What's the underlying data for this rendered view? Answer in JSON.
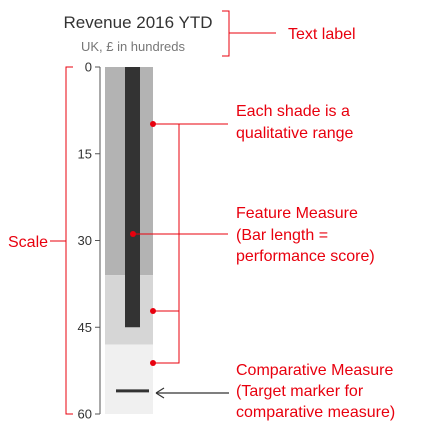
{
  "chart_data": {
    "type": "bullet",
    "title": "Revenue 2016 YTD",
    "subtitle": "UK, £ in hundreds",
    "scale": {
      "min": 0,
      "max": 60,
      "ticks": [
        0,
        15,
        30,
        45,
        60
      ],
      "direction": "top-to-bottom"
    },
    "ranges": [
      {
        "from": 0,
        "to": 36,
        "color": "#b3b3b3"
      },
      {
        "from": 36,
        "to": 48,
        "color": "#d6d6d6"
      },
      {
        "from": 48,
        "to": 60,
        "color": "#f0f0f0"
      }
    ],
    "feature_measure": {
      "value": 45,
      "color": "#333333"
    },
    "comparative_measure": {
      "value": 56,
      "color": "#333333"
    }
  },
  "annotations": {
    "text_label": "Text label",
    "scale": "Scale",
    "ranges": [
      "Each shade is a",
      "qualitative range"
    ],
    "feature": [
      "Feature Measure",
      "(Bar length =",
      "performance score)"
    ],
    "comparative": [
      "Comparative Measure",
      "(Target marker for",
      "comparative measure)"
    ]
  },
  "colors": {
    "accent": "#e8000e",
    "text": "#333333",
    "muted": "#777777"
  }
}
